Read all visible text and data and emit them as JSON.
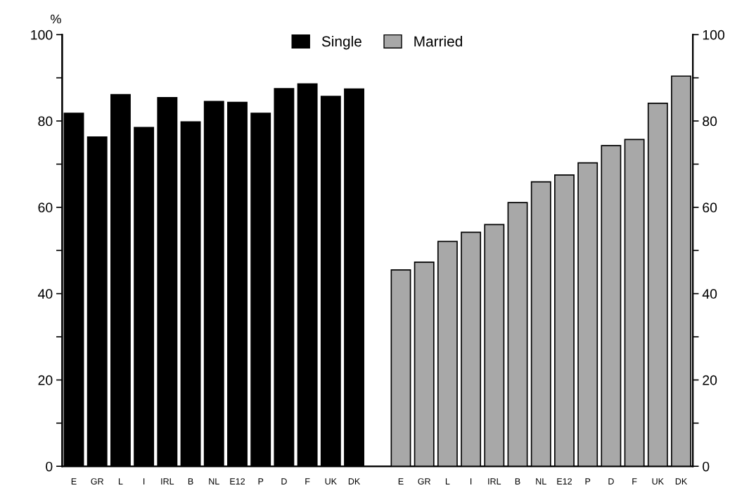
{
  "chart_data": {
    "type": "bar",
    "ylabel": "%",
    "categories": [
      "E",
      "GR",
      "L",
      "I",
      "IRL",
      "B",
      "NL",
      "E12",
      "P",
      "D",
      "F",
      "UK",
      "DK",
      null,
      "E",
      "GR",
      "L",
      "I",
      "IRL",
      "B",
      "NL",
      "E12",
      "P",
      "D",
      "F",
      "UK",
      "DK"
    ],
    "series": [
      {
        "name": "Single",
        "color": "#000000",
        "values": [
          81.8,
          76.3,
          86.1,
          78.5,
          85.4,
          79.8,
          84.5,
          84.3,
          81.8,
          87.5,
          88.6,
          85.7,
          87.4,
          null,
          null,
          null,
          null,
          null,
          null,
          null,
          null,
          null,
          null,
          null,
          null,
          null,
          null
        ]
      },
      {
        "name": "Married",
        "color": "#a8a8a8",
        "axis": "y2",
        "values": [
          null,
          null,
          null,
          null,
          null,
          null,
          null,
          null,
          null,
          null,
          null,
          null,
          null,
          null,
          45.5,
          47.3,
          52.1,
          54.2,
          56.0,
          61.1,
          65.9,
          67.5,
          70.3,
          74.3,
          75.7,
          84.1,
          90.4
        ]
      }
    ],
    "ylim": [
      0,
      100
    ],
    "yticks": [
      0,
      {
        "value": 10,
        "label": null
      },
      20,
      {
        "value": 30,
        "label": null
      },
      40,
      {
        "value": 50,
        "label": null
      },
      60,
      {
        "value": 70,
        "label": null
      },
      80,
      {
        "value": 90,
        "label": null
      },
      100
    ],
    "y2lim": [
      0,
      100
    ],
    "y2ticks": [
      0,
      {
        "value": 10,
        "label": null
      },
      20,
      {
        "value": 30,
        "label": null
      },
      40,
      {
        "value": 50,
        "label": null
      },
      60,
      {
        "value": 70,
        "label": null
      },
      80,
      {
        "value": 90,
        "label": null
      },
      100
    ],
    "legend": "top",
    "grid": false
  }
}
